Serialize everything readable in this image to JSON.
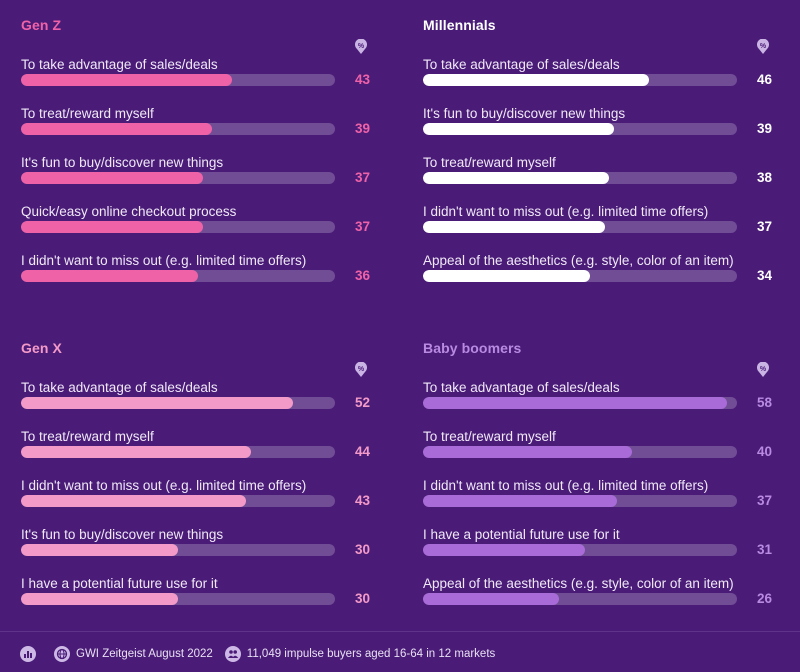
{
  "chart_data": [
    {
      "type": "bar",
      "title": "Gen Z",
      "title_color": "#f062a8",
      "bar_color": "#f062a8",
      "value_color": "#f062a8",
      "unit": "%",
      "xlim": [
        0,
        64
      ],
      "categories": [
        "To take advantage of sales/deals",
        "To treat/reward myself",
        "It's fun to buy/discover new things",
        "Quick/easy online checkout process",
        "I didn't want to miss out (e.g. limited time offers)"
      ],
      "values": [
        43,
        39,
        37,
        37,
        36
      ]
    },
    {
      "type": "bar",
      "title": "Millennials",
      "title_color": "#ffffff",
      "bar_color": "#ffffff",
      "value_color": "#ffffff",
      "unit": "%",
      "xlim": [
        0,
        64
      ],
      "categories": [
        "To take advantage of sales/deals",
        "It's fun to buy/discover new things",
        "To treat/reward myself",
        "I didn't want to miss out (e.g. limited time offers)",
        "Appeal of the aesthetics (e.g. style, color of an item)"
      ],
      "values": [
        46,
        39,
        38,
        37,
        34
      ]
    },
    {
      "type": "bar",
      "title": "Gen X",
      "title_color": "#f39ac8",
      "bar_color": "#f39ac8",
      "value_color": "#f39ac8",
      "unit": "%",
      "xlim": [
        0,
        60
      ],
      "categories": [
        "To take advantage of sales/deals",
        "To treat/reward myself",
        "I didn't want to miss out (e.g. limited time offers)",
        "It's fun to buy/discover new things",
        "I have a potential future use for it"
      ],
      "values": [
        52,
        44,
        43,
        30,
        30
      ]
    },
    {
      "type": "bar",
      "title": "Baby boomers",
      "title_color": "#b98ae0",
      "bar_color": "#a86bd8",
      "value_color": "#b98ae0",
      "unit": "%",
      "xlim": [
        0,
        60
      ],
      "categories": [
        "To take advantage of sales/deals",
        "To treat/reward myself",
        "I didn't want to miss out (e.g. limited time offers)",
        "I have a potential future use for it",
        "Appeal of the aesthetics (e.g. style, color of an item)"
      ],
      "values": [
        58,
        40,
        37,
        31,
        26
      ]
    }
  ],
  "footer": {
    "source": "GWI Zeitgeist August 2022",
    "sample": "11,049 impulse buyers aged 16-64 in 12 markets"
  },
  "icons": [
    "bar-chart-icon",
    "globe-icon",
    "people-icon",
    "percent-badge-icon"
  ]
}
